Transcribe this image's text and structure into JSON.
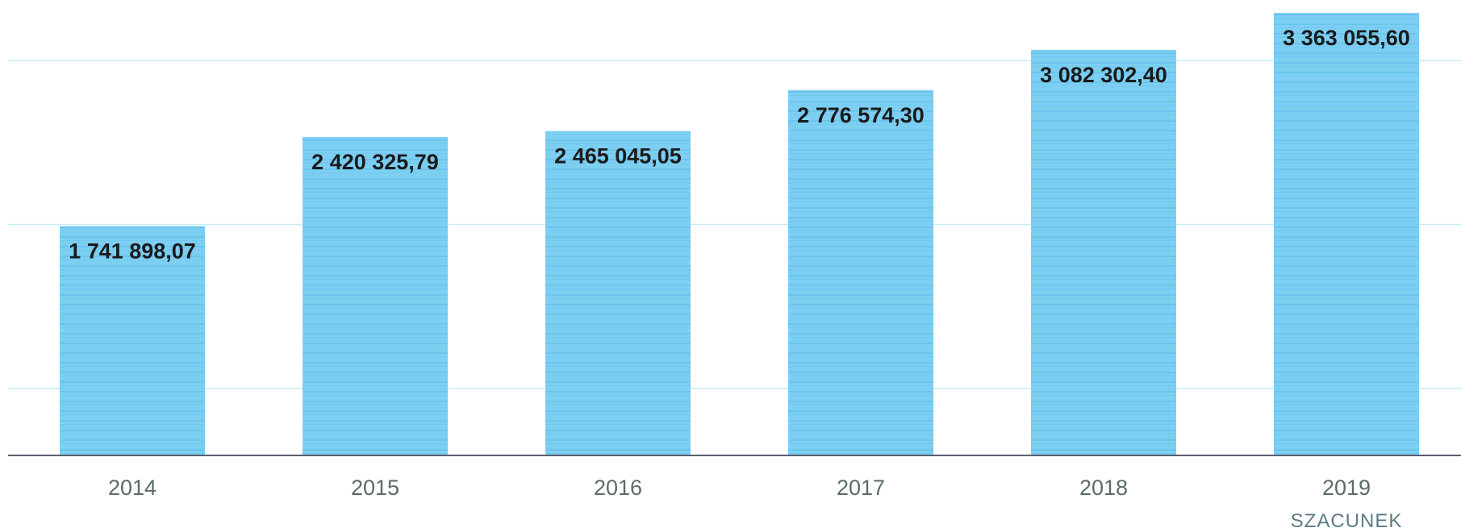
{
  "chart_data": {
    "type": "bar",
    "categories": [
      "2014",
      "2015",
      "2016",
      "2017",
      "2018",
      "2019"
    ],
    "category_sublabels": [
      "",
      "",
      "",
      "",
      "",
      "SZACUNEK"
    ],
    "values": [
      1741898.07,
      2420325.79,
      2465045.05,
      2776574.3,
      3082302.4,
      3363055.6
    ],
    "value_labels": [
      "1 741 898,07",
      "2 420 325,79",
      "2 465 045,05",
      "2 776 574,30",
      "3 082 302,40",
      "3 363 055,60"
    ],
    "title": "",
    "xlabel": "",
    "ylabel": "",
    "ylim": [
      0,
      3400000
    ],
    "grid": true,
    "colors": {
      "bar": "#7dcff2",
      "bar_stripe": "#5cbde9",
      "axis": "#5a6070",
      "gridline": "#c6ecf6"
    }
  }
}
